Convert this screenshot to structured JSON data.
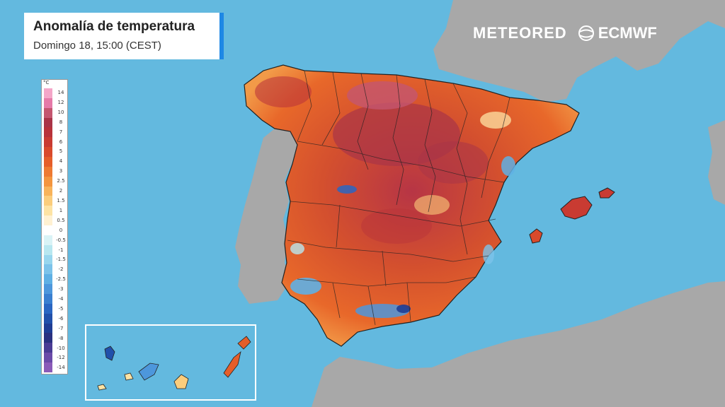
{
  "title": "Anomalía de temperatura",
  "subtitle": "Domingo 18, 15:00 (CEST)",
  "brands": {
    "meteored": "METEORED",
    "ecmwf": "ECMWF"
  },
  "legend": {
    "unit": "°C",
    "labels": [
      "14",
      "12",
      "10",
      "8",
      "7",
      "6",
      "5",
      "4",
      "3",
      "2.5",
      "2",
      "1.5",
      "1",
      "0.5",
      "0",
      "-0.5",
      "-1",
      "-1.5",
      "-2",
      "-2.5",
      "-3",
      "-4",
      "-5",
      "-6",
      "-7",
      "-8",
      "-10",
      "-12",
      "-14"
    ],
    "colors": [
      "#f4a6c8",
      "#e57aa8",
      "#c4566f",
      "#a93447",
      "#b8323a",
      "#c93b32",
      "#d94a2c",
      "#e55e2a",
      "#ee7a32",
      "#f4953e",
      "#f8b35a",
      "#fbcd7c",
      "#fde3a4",
      "#fff1d2",
      "#ffffff",
      "#d9f3f6",
      "#b8e7f0",
      "#98d6ee",
      "#7cc3ea",
      "#5fb0e4",
      "#4d97dc",
      "#3a7fd0",
      "#2a66c2",
      "#2150aa",
      "#1f3d94",
      "#2a3080",
      "#4a3b94",
      "#6a4aa8",
      "#8a5ab8"
    ]
  },
  "colors": {
    "sea": "#63b9df",
    "land_gray": "#a8a8a8",
    "frame_blue": "#1e88e5"
  }
}
